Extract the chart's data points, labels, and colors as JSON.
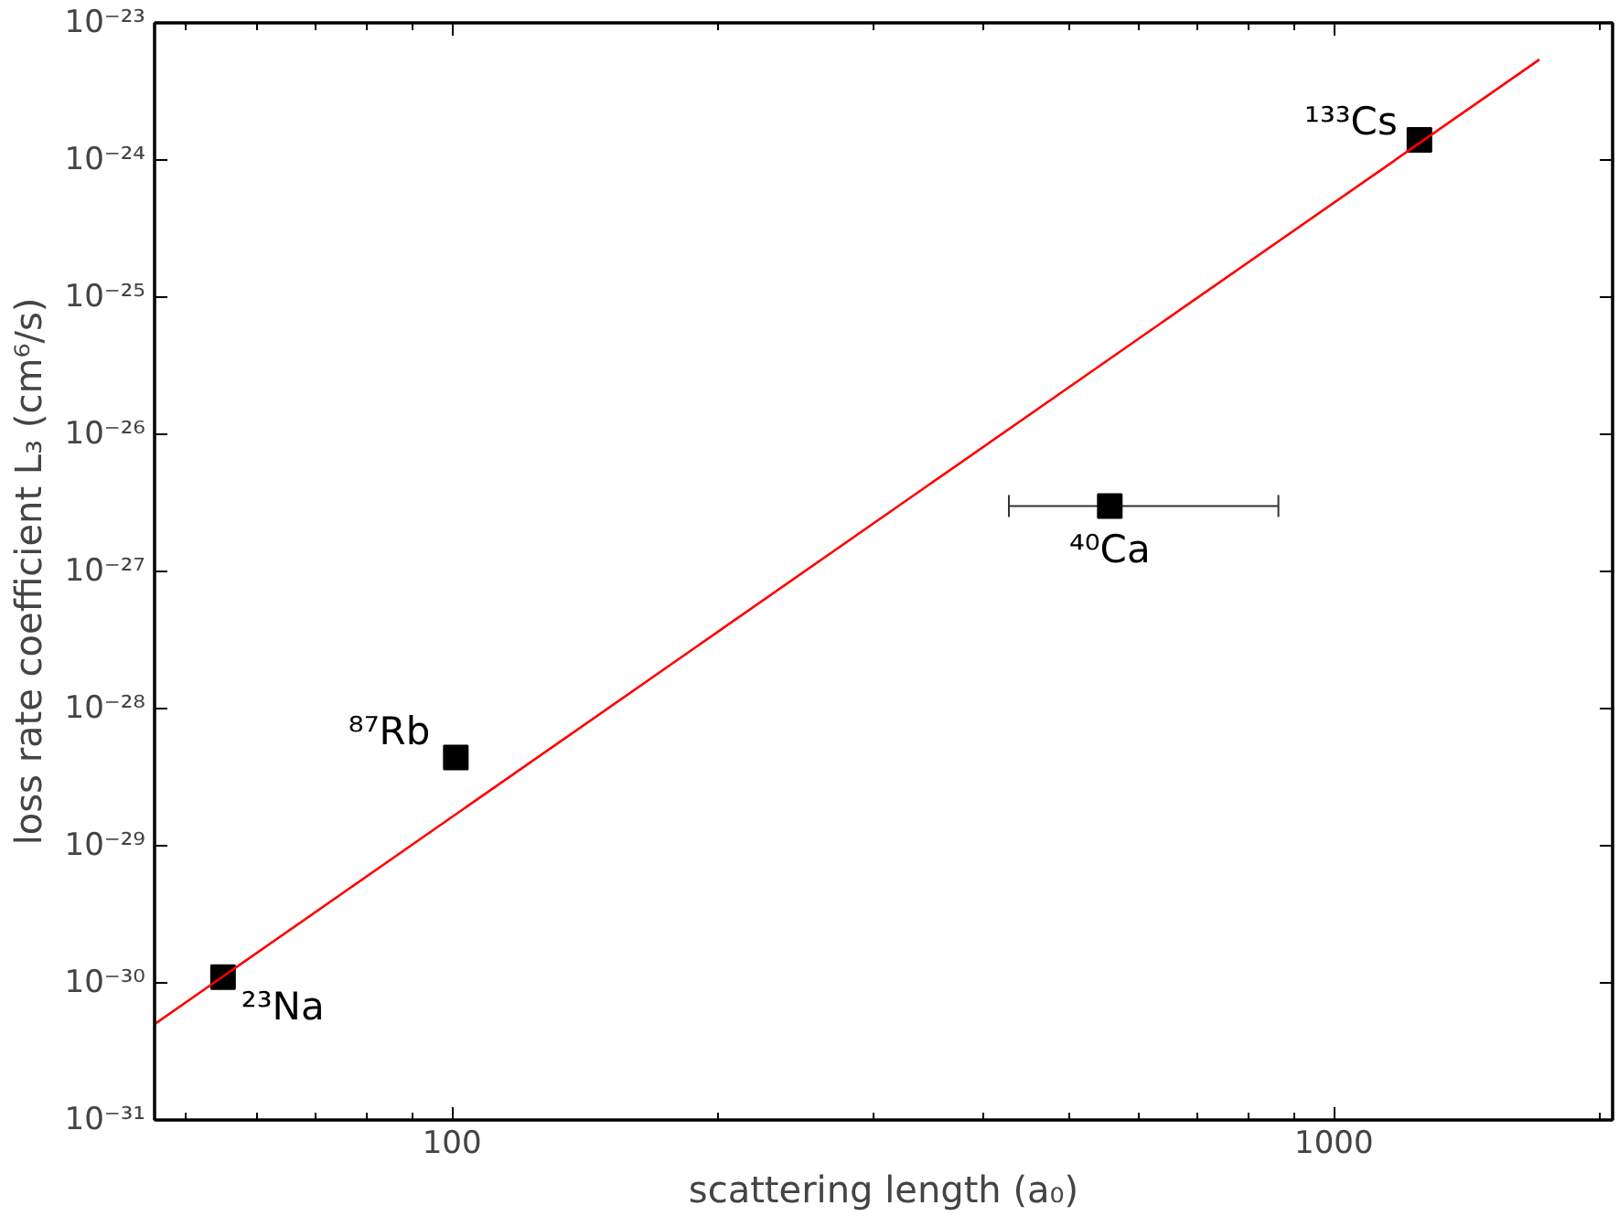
{
  "chart_data": {
    "type": "scatter",
    "xlabel": "scattering length (a₀)",
    "ylabel": "loss rate coefficient L₃ (cm⁶/s)",
    "log": "xy",
    "grid": false,
    "xlim": [
      46,
      2070
    ],
    "ylim": [
      1e-31,
      1e-23
    ],
    "xticks": [
      {
        "value": 50,
        "label": null
      },
      {
        "value": 60,
        "label": null
      },
      {
        "value": 70,
        "label": null
      },
      {
        "value": 80,
        "label": null
      },
      {
        "value": 90,
        "label": null
      },
      100,
      {
        "value": 200,
        "label": null
      },
      {
        "value": 300,
        "label": null
      },
      {
        "value": 400,
        "label": null
      },
      {
        "value": 500,
        "label": null
      },
      {
        "value": 600,
        "label": null
      },
      {
        "value": 700,
        "label": null
      },
      {
        "value": 800,
        "label": null
      },
      {
        "value": 900,
        "label": null
      },
      1000,
      {
        "value": 2000,
        "label": null
      }
    ],
    "yticks": [
      {
        "value": 1e-31,
        "label": "10⁻³¹"
      },
      {
        "value": 1e-30,
        "label": "10⁻³⁰"
      },
      {
        "value": 1e-29,
        "label": "10⁻²⁹"
      },
      {
        "value": 1e-28,
        "label": "10⁻²⁸"
      },
      {
        "value": 1e-27,
        "label": "10⁻²⁷"
      },
      {
        "value": 1e-26,
        "label": "10⁻²⁶"
      },
      {
        "value": 1e-25,
        "label": "10⁻²⁵"
      },
      {
        "value": 1e-24,
        "label": "10⁻²⁴"
      },
      {
        "value": 1e-23,
        "label": "10⁻²³"
      }
    ],
    "series": [
      {
        "marker": "square",
        "color": "#000000",
        "x": [
          55,
          101,
          557,
          1250
        ],
        "values": [
          1.1e-30,
          4.4e-29,
          3e-27,
          1.4e-24
        ],
        "xerrors": [
          null,
          null,
          [
            428,
            865
          ],
          null
        ]
      },
      {
        "type": "line",
        "color": "#ff0000",
        "x": [
          46,
          1710
        ],
        "values": [
          5e-31,
          5.4e-24
        ]
      }
    ],
    "annotations": [
      {
        "text": "²³Na",
        "x": 55,
        "y": 1.1e-30
      },
      {
        "text": "⁸⁷Rb",
        "x": 101,
        "y": 4.4e-29
      },
      {
        "text": "⁴⁰Ca",
        "x": 557,
        "y": 3e-27
      },
      {
        "text": "¹³³Cs",
        "x": 1250,
        "y": 1.4e-24
      }
    ]
  }
}
